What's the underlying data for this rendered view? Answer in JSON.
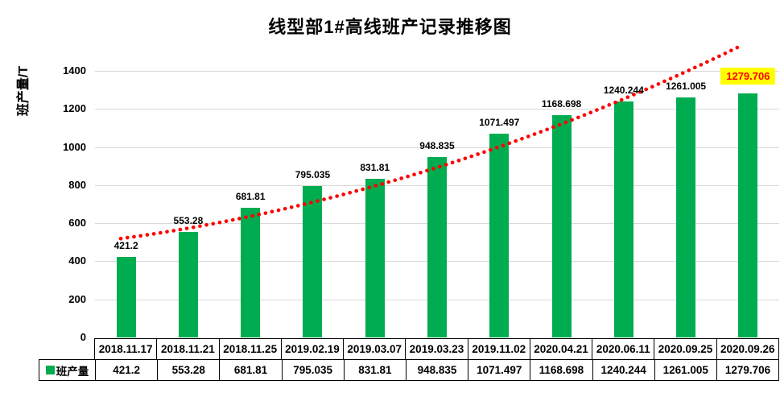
{
  "title": "线型部1#高线班产记录推移图",
  "y_axis_label": "班产量/T",
  "legend_label": "班产量",
  "colors": {
    "bar": "#00AC50",
    "trend": "#FF0000",
    "grid": "#D9D9D9",
    "table_border": "#000000",
    "label_text": "#000000",
    "highlight_bg": "#FFFF00",
    "highlight_text": "#FF0000"
  },
  "chart_data": {
    "type": "bar",
    "title": "线型部1#高线班产记录推移图",
    "xlabel": "",
    "ylabel": "班产量/T",
    "categories": [
      "2018.11.17",
      "2018.11.21",
      "2018.11.25",
      "2019.02.19",
      "2019.03.07",
      "2019.03.23",
      "2019.11.02",
      "2020.04.21",
      "2020.06.11",
      "2020.09.25",
      "2020.09.26"
    ],
    "series": [
      {
        "name": "班产量",
        "values": [
          421.2,
          553.28,
          681.81,
          795.035,
          831.81,
          948.835,
          1071.497,
          1168.698,
          1240.244,
          1261.005,
          1279.706
        ]
      }
    ],
    "data_labels": [
      "421.2",
      "553.28",
      "681.81",
      "795.035",
      "831.81",
      "948.835",
      "1071.497",
      "1168.698",
      "1240.244",
      "1261.005",
      "1279.706"
    ],
    "highlighted_label_index": 10,
    "yticks": [
      0,
      200,
      400,
      600,
      800,
      1000,
      1200,
      1400
    ],
    "ylim": [
      0,
      1600
    ],
    "grid": true,
    "legend_position": "bottom-table",
    "trendline": {
      "style": "dotted",
      "color": "#FF0000",
      "shape": "exponential-rising"
    }
  }
}
